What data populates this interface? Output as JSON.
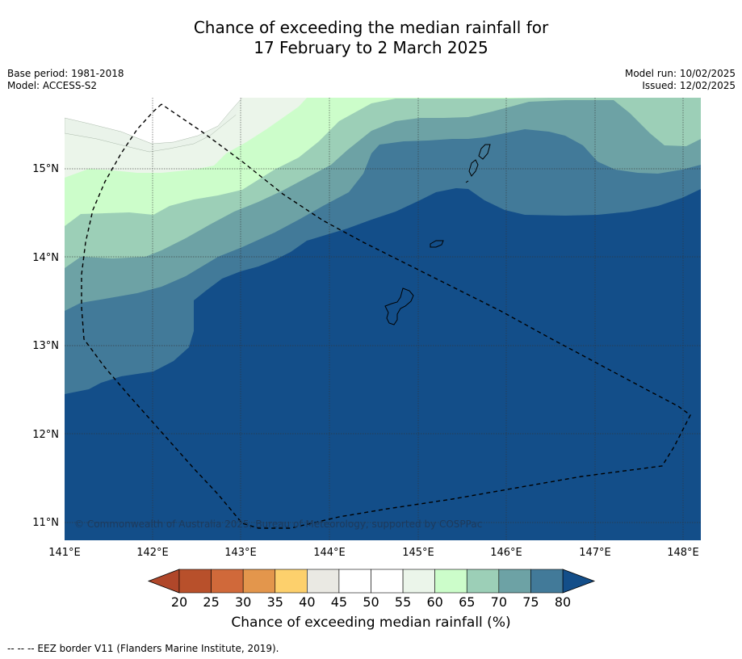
{
  "title_line1": "Chance of exceeding the median rainfall for",
  "title_line2": "17 February to 2 March 2025",
  "base_period": "Base period: 1981-2018",
  "model": "Model: ACCESS-S2",
  "model_run": "Model run: 10/02/2025",
  "issued": "Issued: 12/02/2025",
  "copyright": "© Commonwealth of Australia 2025, Bureau of Meteorology, supported by COSPPac",
  "footer": "--  --  -- EEZ border V11 (Flanders Marine Institute, 2019).",
  "colorbar": {
    "title": "Chance of exceeding median rainfall (%)",
    "ticks": [
      "20",
      "25",
      "30",
      "35",
      "40",
      "45",
      "50",
      "55",
      "60",
      "65",
      "70",
      "75",
      "80"
    ],
    "colors": [
      "#b0472a",
      "#b8502b",
      "#d0693a",
      "#e3964c",
      "#fdd06c",
      "#eae9e3",
      "#ffffff",
      "#ffffff",
      "#ebf5ea",
      "#ccfdca",
      "#9ccfb7",
      "#6da2a5",
      "#427a99",
      "#134e89"
    ]
  },
  "map": {
    "lon_labels": [
      "141°E",
      "142°E",
      "143°E",
      "144°E",
      "145°E",
      "146°E",
      "147°E",
      "148°E"
    ],
    "lat_labels": [
      "15°N",
      "14°N",
      "13°N",
      "12°N",
      "11°N"
    ],
    "lon_range": [
      141,
      148.2
    ],
    "lat_range": [
      10.8,
      15.8
    ],
    "level_colors": {
      "45-50": "#eaf3ea",
      "55-60": "#ebf5ea",
      "60-65": "#ccfdca",
      "65-70": "#9ccfb7",
      "70-75": "#6da2a5",
      "75-80": "#427a99",
      "80+": "#134e89"
    }
  }
}
